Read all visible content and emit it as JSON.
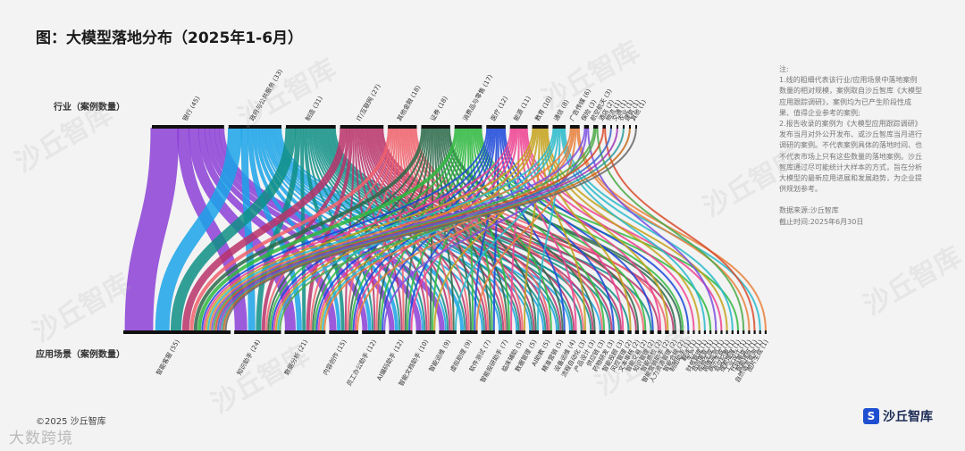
{
  "title": "图：大模型落地分布（2025年1-6月）",
  "footer": "©2025 沙丘智库",
  "brand": {
    "name": "沙丘智库",
    "icon_glyph": "S"
  },
  "watermark": {
    "text": "沙丘智库",
    "bottom_logo": "大数跨境"
  },
  "notes": {
    "heading": "注:",
    "lines": [
      "1.线的粗细代表该行业/应用场景中落地案例",
      "数量的相对规模，案例取自沙丘智库《大模型",
      "应用跟踪调研》，案例均为已产生阶段性成",
      "果、值得企业参考的案例;",
      "2.报告收录的案例为《大模型应用跟踪调研》",
      "发布当月对外公开发布、或沙丘智库当月进行",
      "调研的案例。不代表案例具体的落地时间、也",
      "不代表市场上只有这些数量的落地案例。沙丘",
      "智库通过尽可能统计大样本的方式，旨在分析",
      "大模型的最新应用进展和发展趋势，为企业提",
      "供规划参考。"
    ],
    "source": "数据来源:沙丘智库",
    "cutoff": "截止时间:2025年6月30日"
  },
  "chart_data": {
    "type": "sankey",
    "title": "图：大模型落地分布（2025年1-6月）",
    "source_label": "行业（案例数量）",
    "target_label": "应用场景（案例数量）",
    "colors": {
      "银行": "#8b3fd6",
      "政府与公共服务": "#1aa3e8",
      "制造": "#0f8f86",
      "IT/互联网": "#b8336a",
      "其他金融": "#f0606b",
      "证券": "#2c6a4a",
      "消费品与零售": "#2eb83e",
      "医疗": "#1a46d9",
      "能源": "#ef3f8f",
      "教育": "#c4a11a",
      "通信": "#27b8c9",
      "广告传媒": "#e87f3a",
      "保险": "#7a4fe0",
      "航空航天": "#4aa844",
      "酒店": "#d94a2a",
      "物流": "#3a64c8",
      "交通": "#a03ab8",
      "农业": "#2a9a9a",
      "建筑": "#c46a1a",
      "其他": "#666666"
    },
    "sources": [
      {
        "name": "银行",
        "value": 45
      },
      {
        "name": "政府与公共服务",
        "value": 33
      },
      {
        "name": "制造",
        "value": 31
      },
      {
        "name": "IT/互联网",
        "value": 27
      },
      {
        "name": "其他金融",
        "value": 18
      },
      {
        "name": "证券",
        "value": 18
      },
      {
        "name": "消费品与零售",
        "value": 17
      },
      {
        "name": "医疗",
        "value": 12
      },
      {
        "name": "能源",
        "value": 11
      },
      {
        "name": "教育",
        "value": 10
      },
      {
        "name": "通信",
        "value": 8
      },
      {
        "name": "广告传媒",
        "value": 6
      },
      {
        "name": "保险",
        "value": 3
      },
      {
        "name": "航空航天",
        "value": 3
      },
      {
        "name": "酒店",
        "value": 2
      },
      {
        "name": "物流",
        "value": 1
      },
      {
        "name": "交通",
        "value": 1
      },
      {
        "name": "农业",
        "value": 1
      },
      {
        "name": "建筑",
        "value": 1
      },
      {
        "name": "其他",
        "value": 1
      }
    ],
    "targets": [
      {
        "name": "智能客服",
        "value": 55
      },
      {
        "name": "知识助手",
        "value": 24
      },
      {
        "name": "数据分析",
        "value": 21
      },
      {
        "name": "内容创作",
        "value": 15
      },
      {
        "name": "员工办公助手",
        "value": 12
      },
      {
        "name": "AI编码助手",
        "value": 12
      },
      {
        "name": "智能文档助手",
        "value": 10
      },
      {
        "name": "智能运维",
        "value": 9
      },
      {
        "name": "虚拟助理",
        "value": 9
      },
      {
        "name": "软件测试",
        "value": 7
      },
      {
        "name": "智能投研助手",
        "value": 7
      },
      {
        "name": "临床辅助",
        "value": 5
      },
      {
        "name": "数据管理",
        "value": 5
      },
      {
        "name": "AI助教",
        "value": 5
      },
      {
        "name": "精准营销",
        "value": 5
      },
      {
        "name": "设备运维",
        "value": 4
      },
      {
        "name": "流程自动化",
        "value": 3
      },
      {
        "name": "产品设计",
        "value": 3
      },
      {
        "name": "供应链",
        "value": 3
      },
      {
        "name": "药物研发",
        "value": 3
      },
      {
        "name": "智能投顾",
        "value": 3
      },
      {
        "name": "风控管理",
        "value": 2
      },
      {
        "name": "文本审核",
        "value": 2
      },
      {
        "name": "智能交易",
        "value": 2
      },
      {
        "name": "知识管理",
        "value": 2
      },
      {
        "name": "智能质检",
        "value": 2
      },
      {
        "name": "智能营销助手",
        "value": 2
      },
      {
        "name": "人力资源管理",
        "value": 2
      },
      {
        "name": "智能合规",
        "value": 2
      },
      {
        "name": "制图助手",
        "value": 1
      },
      {
        "name": "翻译",
        "value": 1
      },
      {
        "name": "生产",
        "value": 1
      },
      {
        "name": "财务管理",
        "value": 1
      },
      {
        "name": "合同审查",
        "value": 1
      },
      {
        "name": "视频生成",
        "value": 1
      },
      {
        "name": "舆情监测",
        "value": 1
      },
      {
        "name": "病历生成",
        "value": 1
      },
      {
        "name": "会议纪要",
        "value": 1
      },
      {
        "name": "搜索增强",
        "value": 1
      },
      {
        "name": "工业设计",
        "value": 1
      },
      {
        "name": "代码审查",
        "value": 1
      },
      {
        "name": "智能排班",
        "value": 1
      },
      {
        "name": "自然语言查询",
        "value": 1
      },
      {
        "name": "图片生成",
        "value": 1
      }
    ]
  }
}
